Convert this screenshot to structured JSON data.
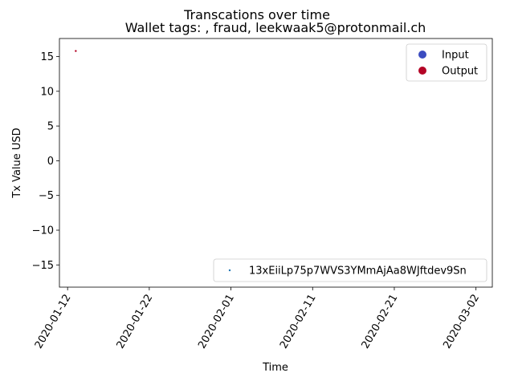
{
  "chart_data": {
    "type": "scatter",
    "title": "Transcations over time",
    "subtitle": "Wallet tags: , fraud, leekwaak5@protonmail.ch",
    "xlabel": "Time",
    "ylabel": "Tx Value USD",
    "x_axis_type": "date",
    "xlim": [
      "2020-01-11",
      "2020-03-04"
    ],
    "ylim": [
      -18.2,
      17.6
    ],
    "x_ticks": [
      "2020-01-12",
      "2020-01-22",
      "2020-02-01",
      "2020-02-11",
      "2020-02-21",
      "2020-03-02"
    ],
    "y_ticks": [
      15,
      10,
      5,
      0,
      -5,
      -10,
      -15
    ],
    "y_tick_labels": [
      "15",
      "10",
      "5",
      "0",
      "−5",
      "−10",
      "−15"
    ],
    "grid": false,
    "legend_types": {
      "placement": "top-right",
      "entries": [
        {
          "label": "Input",
          "color": "#3b4cc0"
        },
        {
          "label": "Output",
          "color": "#b40426"
        }
      ]
    },
    "legend_wallet": {
      "placement": "bottom-right",
      "entries": [
        {
          "label": "13xEiiLp75p7WVS3YMmAjAa8WJftdev9Sn",
          "color": "#1f77b4"
        }
      ]
    },
    "points": [
      {
        "x": "2020-01-13",
        "y": 15.8,
        "series": "Output",
        "color": "#b40426"
      }
    ]
  }
}
